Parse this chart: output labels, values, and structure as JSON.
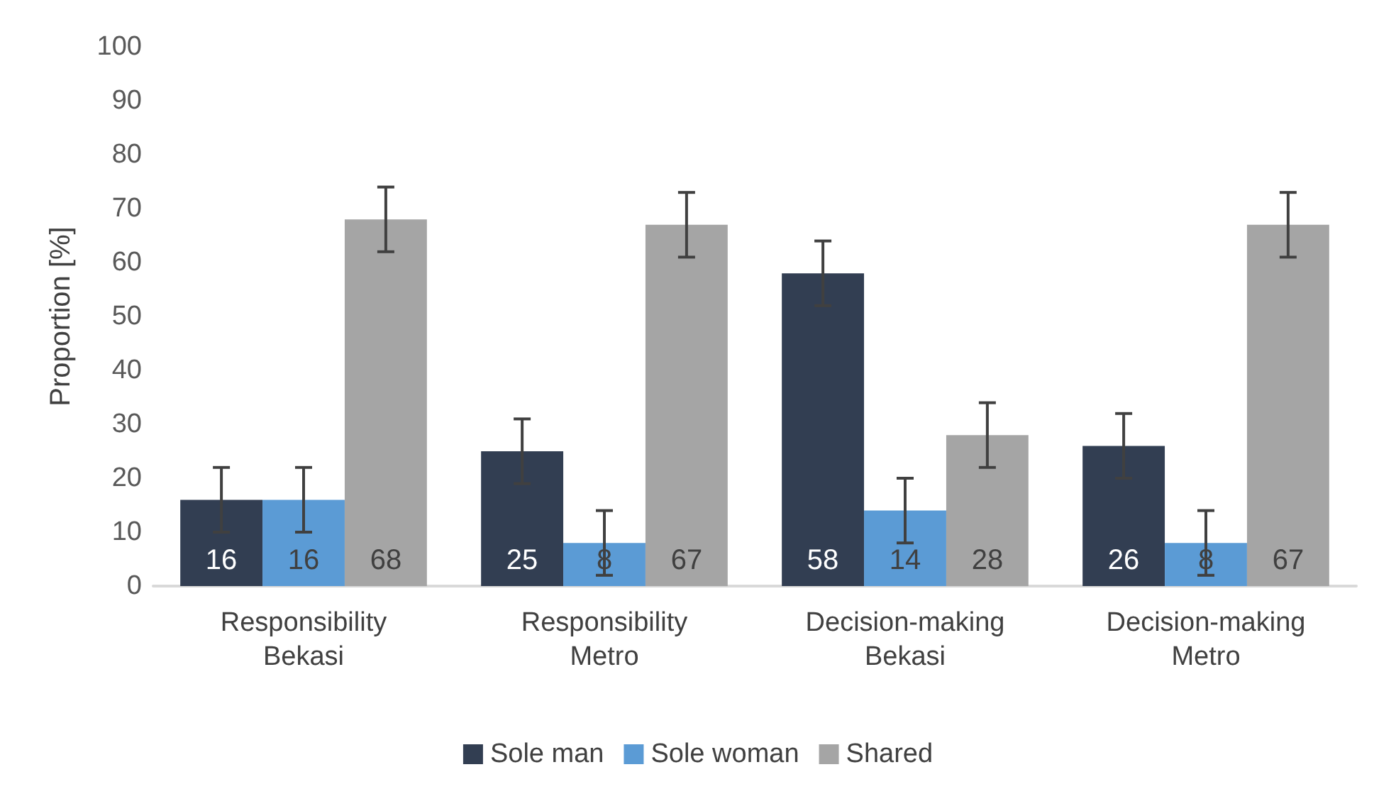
{
  "chart_data": {
    "type": "bar",
    "ylabel": "Proportion [%]",
    "categories": [
      "Responsibility\nBekasi",
      "Responsibility\nMetro",
      "Decision-making\nBekasi",
      "Decision-making\nMetro"
    ],
    "series": [
      {
        "name": "Sole man",
        "color": "#323e52",
        "values": [
          16,
          25,
          58,
          26
        ],
        "errors": [
          6,
          6,
          6,
          6
        ]
      },
      {
        "name": "Sole woman",
        "color": "#5b9bd5",
        "values": [
          16,
          8,
          14,
          8
        ],
        "errors": [
          6,
          6,
          6,
          6
        ]
      },
      {
        "name": "Shared",
        "color": "#a5a5a5",
        "values": [
          68,
          67,
          28,
          67
        ],
        "errors": [
          6,
          6,
          6,
          6
        ]
      }
    ],
    "ylim": [
      0,
      100
    ],
    "yticks": [
      0,
      10,
      20,
      30,
      40,
      50,
      60,
      70,
      80,
      90,
      100
    ],
    "grid": false,
    "legend": "bottom",
    "data_labels": true
  }
}
